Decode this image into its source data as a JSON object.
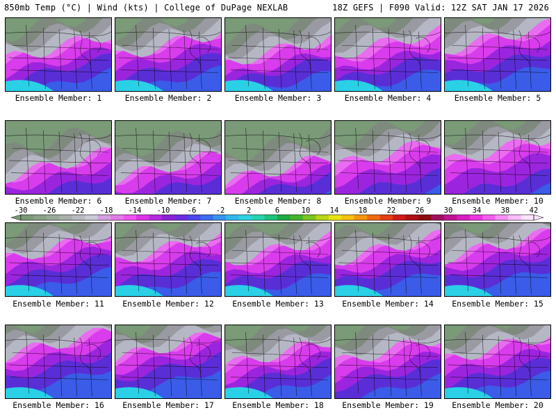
{
  "header": {
    "left": "850mb Temp (°C) | Wind (kts) | College of DuPage NEXLAB",
    "right": "18Z GEFS | F090 Valid: 12Z SAT JAN 17 2026"
  },
  "colorbar": {
    "ticks": [
      "-30",
      "-26",
      "-22",
      "-18",
      "-14",
      "-10",
      "-6",
      "-2",
      "2",
      "6",
      "10",
      "14",
      "18",
      "22",
      "26",
      "30",
      "34",
      "38",
      "42"
    ],
    "colors": [
      "#7a9a78",
      "#8aa088",
      "#9aa99a",
      "#a9b0a9",
      "#b8bbc2",
      "#cac9d6",
      "#d69fe0",
      "#e27be8",
      "#ee55f0",
      "#dc33e8",
      "#b628e0",
      "#8c22d8",
      "#6a2ee0",
      "#4c46ee",
      "#3d6cf0",
      "#3a92ee",
      "#32b8ea",
      "#2fd2e2",
      "#26d4b0",
      "#1fc27a",
      "#1daa44",
      "#43b42a",
      "#7ec41e",
      "#b8d616",
      "#e8e414",
      "#f6c012",
      "#f59610",
      "#f06a10",
      "#e43e12",
      "#d01a16",
      "#b01014",
      "#8c0c10",
      "#a01060",
      "#c01494",
      "#d81cc0",
      "#ec34e0",
      "#f45ef0",
      "#f88ef6",
      "#fcbcfa",
      "#ffe4fe"
    ]
  },
  "members": [
    {
      "label": "Ensemble Member: 1"
    },
    {
      "label": "Ensemble Member: 2"
    },
    {
      "label": "Ensemble Member: 3"
    },
    {
      "label": "Ensemble Member: 4"
    },
    {
      "label": "Ensemble Member: 5"
    },
    {
      "label": "Ensemble Member: 6"
    },
    {
      "label": "Ensemble Member: 7"
    },
    {
      "label": "Ensemble Member: 8"
    },
    {
      "label": "Ensemble Member: 9"
    },
    {
      "label": "Ensemble Member: 10"
    },
    {
      "label": "Ensemble Member: 11"
    },
    {
      "label": "Ensemble Member: 12"
    },
    {
      "label": "Ensemble Member: 13"
    },
    {
      "label": "Ensemble Member: 14"
    },
    {
      "label": "Ensemble Member: 15"
    },
    {
      "label": "Ensemble Member: 16"
    },
    {
      "label": "Ensemble Member: 17"
    },
    {
      "label": "Ensemble Member: 18"
    },
    {
      "label": "Ensemble Member: 19"
    },
    {
      "label": "Ensemble Member: 20"
    }
  ]
}
